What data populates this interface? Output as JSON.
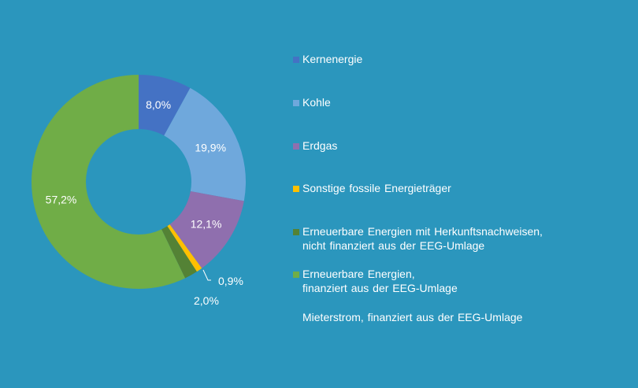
{
  "colors": {
    "background": "#2b96bd",
    "label_text": "#ffffff"
  },
  "chart_data": {
    "type": "pie",
    "donut": true,
    "slices": [
      {
        "name": "Kernenergie",
        "value": 8.0,
        "label": "8,0%",
        "color": "#4472c4"
      },
      {
        "name": "Kohle",
        "value": 19.9,
        "label": "19,9%",
        "color": "#6fa8dc"
      },
      {
        "name": "Erdgas",
        "value": 12.1,
        "label": "12,1%",
        "color": "#8f6fae"
      },
      {
        "name": "Sonstige fossile Energieträger",
        "value": 0.9,
        "label": "0,9%",
        "color": "#ffc000"
      },
      {
        "name": "Erneuerbare Energien mit Herkunftsnachweisen, nicht finanziert aus der EEG-Umlage",
        "value": 2.0,
        "label": "2,0%",
        "color": "#548235"
      },
      {
        "name": "Erneuerbare Energien, finanziert aus der EEG-Umlage",
        "value": 57.2,
        "label": "57,2%",
        "color": "#70ad47"
      },
      {
        "name": "Mieterstrom, finanziert aus der EEG-Umlage",
        "value": 0.0,
        "label": "",
        "color": ""
      }
    ],
    "legend_position": "right"
  },
  "legend": [
    {
      "text": "Kernenergie",
      "color": "#4472c4"
    },
    {
      "text": "Kohle",
      "color": "#6fa8dc"
    },
    {
      "text": "Erdgas",
      "color": "#8f6fae"
    },
    {
      "text": "Sonstige fossile Energieträger",
      "color": "#ffc000"
    },
    {
      "text": "Erneuerbare Energien mit Herkunftsnachweisen,\nnicht finanziert aus der EEG-Umlage",
      "color": "#548235"
    },
    {
      "text": "Erneuerbare Energien,\nfinanziert aus der EEG-Umlage",
      "color": "#70ad47"
    },
    {
      "text": "Mieterstrom, finanziert aus der EEG-Umlage",
      "color": ""
    }
  ]
}
